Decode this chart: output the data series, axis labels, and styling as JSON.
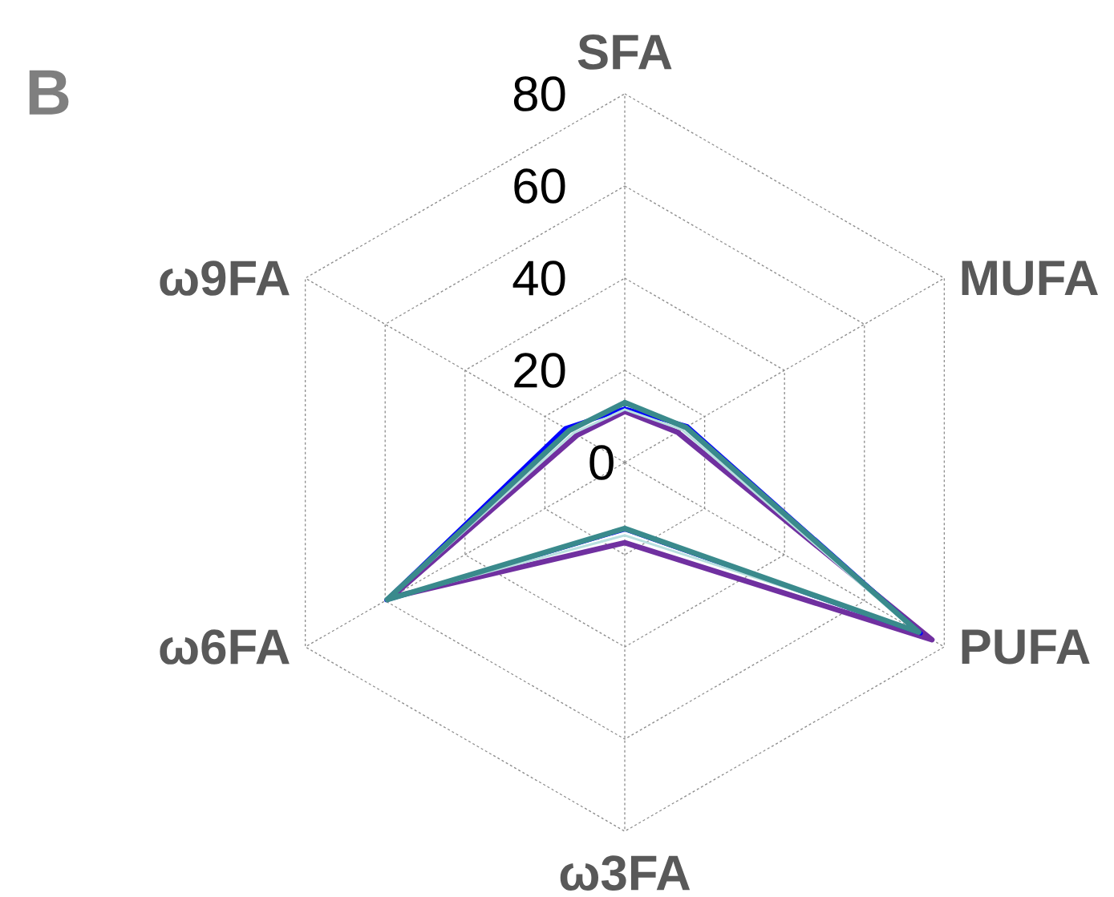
{
  "chart_data": {
    "type": "radar",
    "title": "B",
    "categories": [
      "SFA",
      "MUFA",
      "PUFA",
      "ω3FA",
      "ω6FA",
      "ω9FA"
    ],
    "series": [
      {
        "color": "#7030a0",
        "values": [
          11.1,
          13.2,
          76.9,
          17.4,
          58.5,
          11.9
        ]
      },
      {
        "color": "#0000ff",
        "values": [
          11.7,
          15.7,
          74.1,
          14.5,
          59.7,
          14.9
        ]
      },
      {
        "color": "#b8e0e0",
        "values": [
          11.5,
          14.3,
          72,
          15.8,
          59,
          12.8
        ]
      },
      {
        "color": "#3a8a8c",
        "values": [
          13.0,
          15.3,
          73.6,
          14.3,
          59.5,
          13.9
        ]
      }
    ],
    "ylim": [
      0,
      80
    ],
    "yticks": [
      0,
      20,
      40,
      60,
      80
    ],
    "grid": true,
    "marker": "none",
    "line_style": "solid"
  }
}
